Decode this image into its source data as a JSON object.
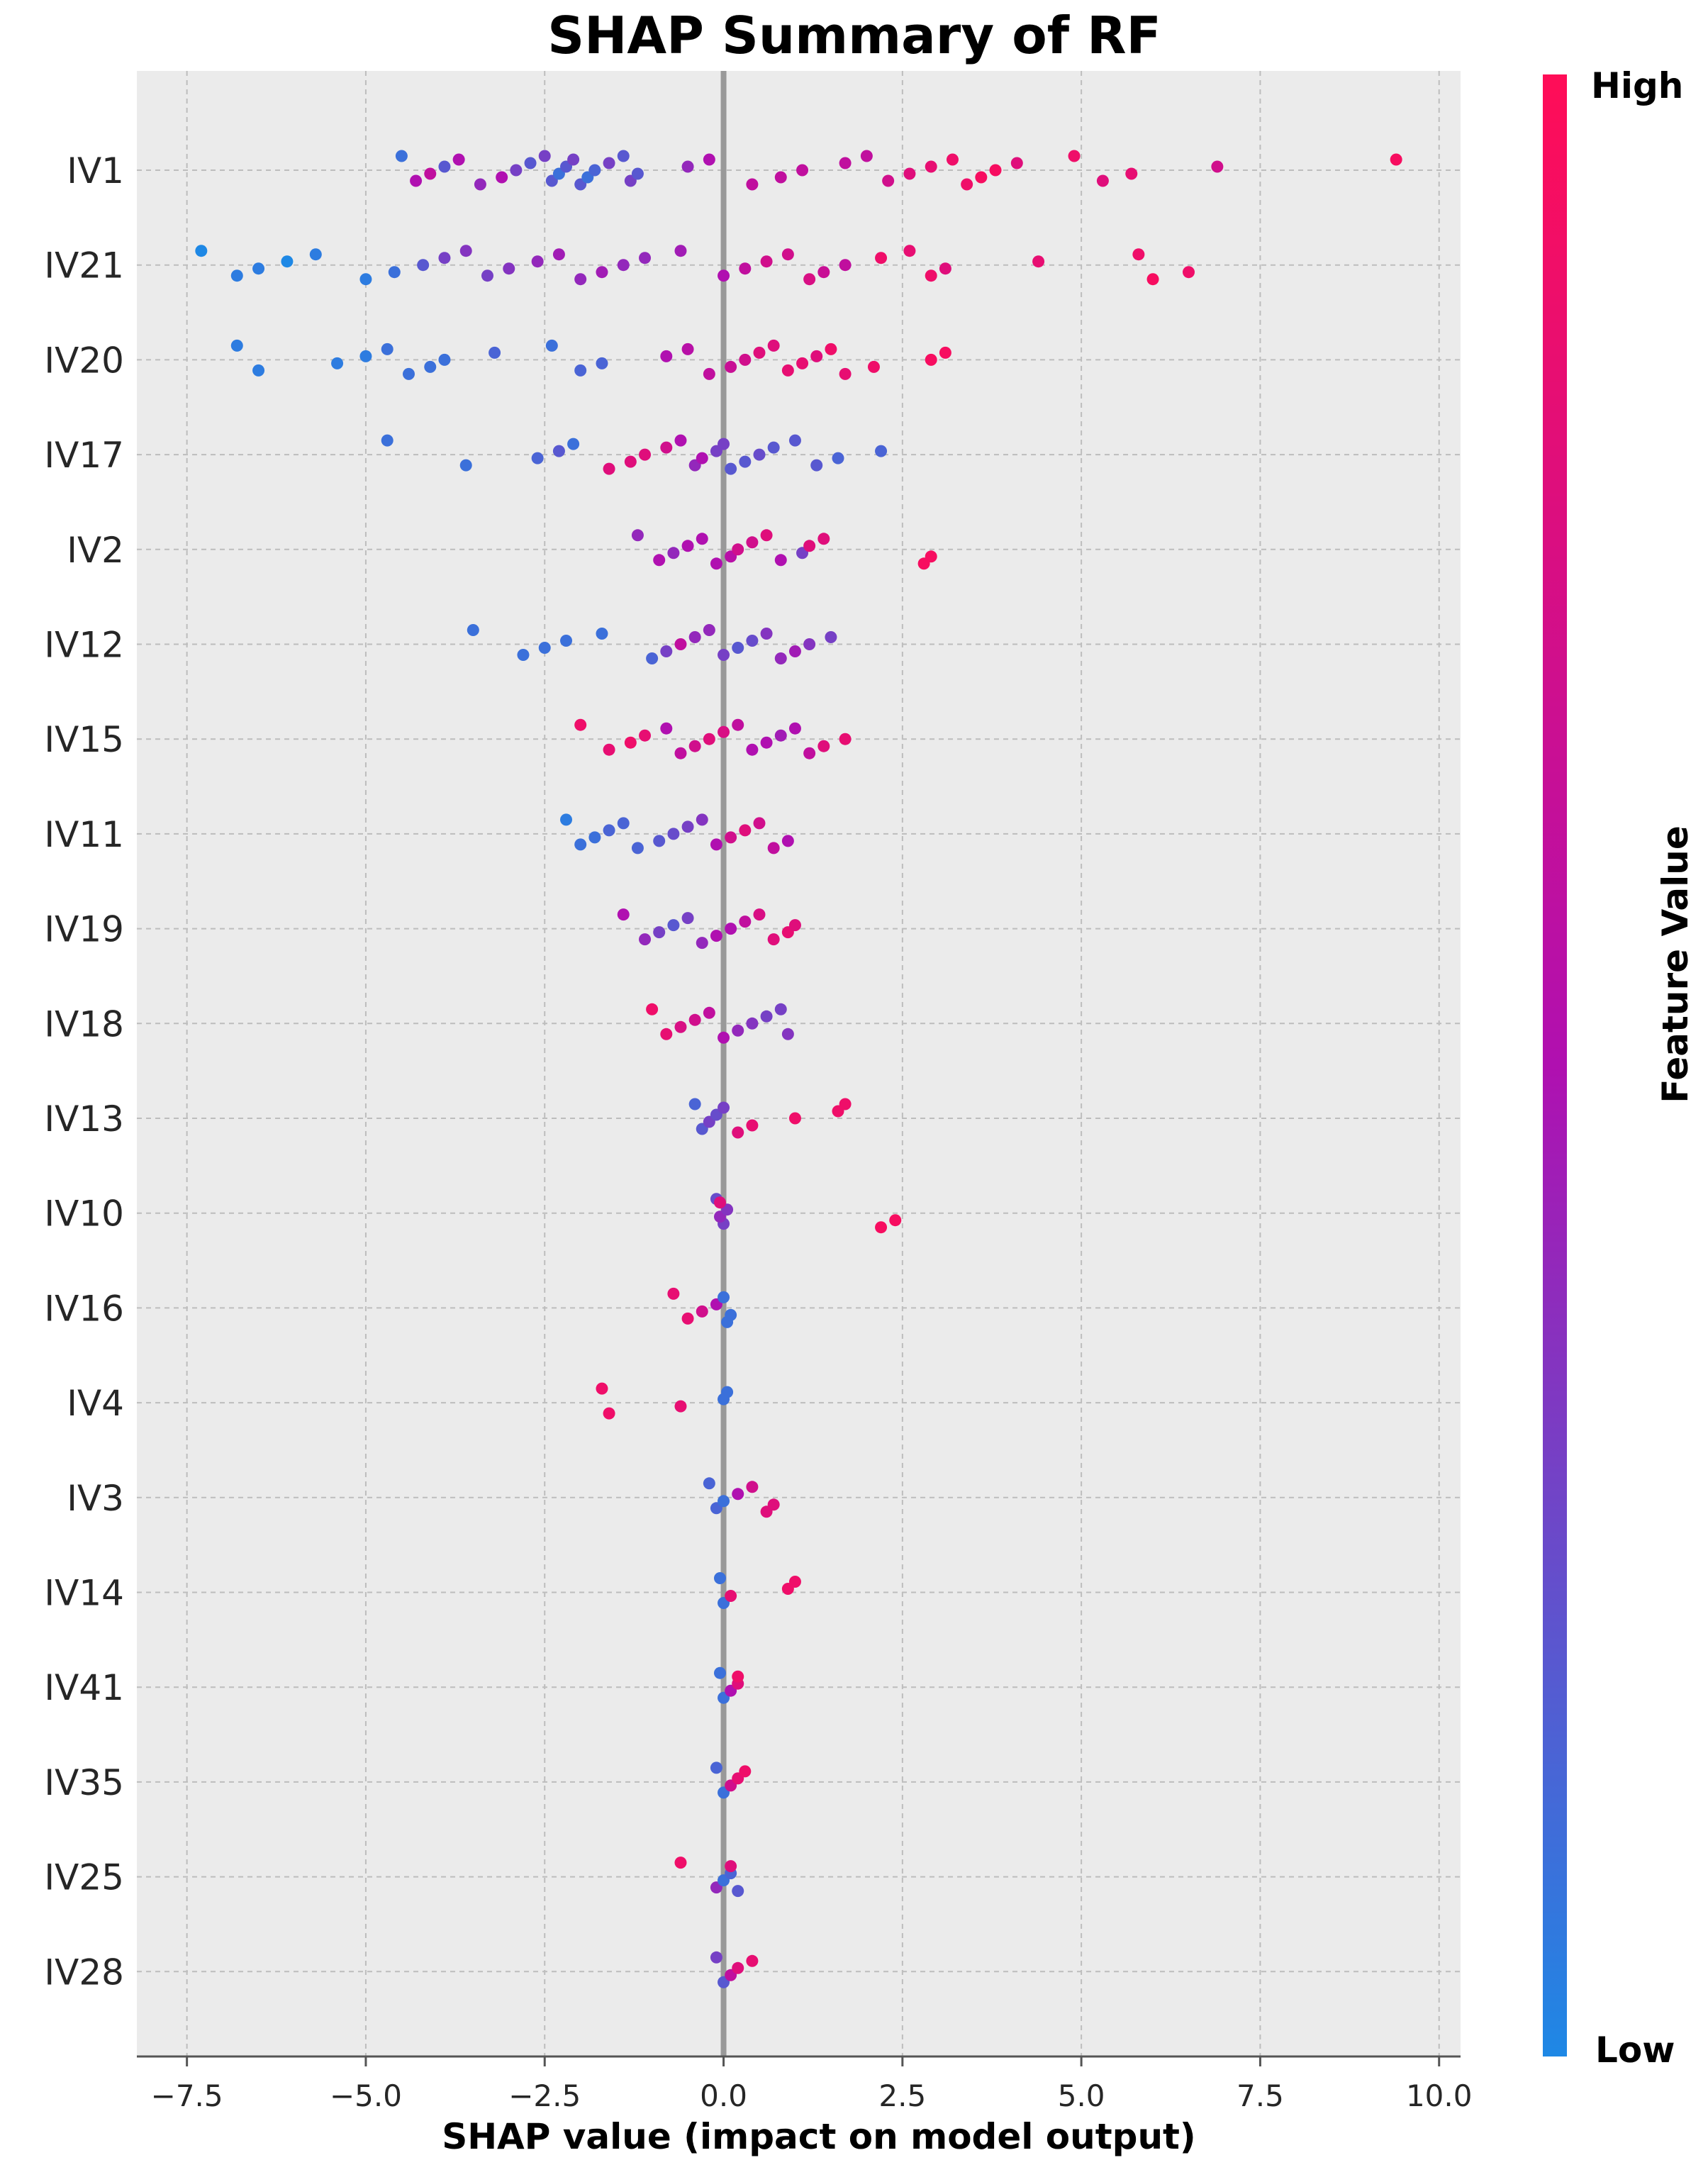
{
  "chart_data": {
    "type": "scatter",
    "subtype": "shap-beeswarm",
    "title": "SHAP Summary of RF",
    "xlabel": "SHAP value (impact on model output)",
    "xlim": [
      -8.2,
      10.3
    ],
    "xticks": [
      -7.5,
      -5.0,
      -2.5,
      0.0,
      2.5,
      5.0,
      7.5,
      10.0
    ],
    "xtick_labels": [
      "−7.5",
      "−5.0",
      "−2.5",
      "0.0",
      "2.5",
      "5.0",
      "7.5",
      "10.0"
    ],
    "grid": true,
    "colorbar": {
      "label": "Feature Value",
      "high_label": "High",
      "low_label": "Low",
      "low_color": "#1E88E5",
      "mid_color": "#B010B0",
      "high_color": "#FF0D57"
    },
    "features": [
      {
        "name": "IV1",
        "points": [
          [
            -4.5,
            0.1
          ],
          [
            -4.3,
            0.5
          ],
          [
            -4.1,
            0.6
          ],
          [
            -3.9,
            0.2
          ],
          [
            -3.7,
            0.5
          ],
          [
            -3.4,
            0.4
          ],
          [
            -3.1,
            0.5
          ],
          [
            -2.9,
            0.3
          ],
          [
            -2.7,
            0.2
          ],
          [
            -2.5,
            0.3
          ],
          [
            -2.4,
            0.2
          ],
          [
            -2.3,
            0.1
          ],
          [
            -2.2,
            0.2
          ],
          [
            -2.1,
            0.3
          ],
          [
            -2.0,
            0.2
          ],
          [
            -1.9,
            0.1
          ],
          [
            -1.8,
            0.15
          ],
          [
            -1.6,
            0.3
          ],
          [
            -1.4,
            0.2
          ],
          [
            -1.3,
            0.3
          ],
          [
            -1.2,
            0.2
          ],
          [
            -0.5,
            0.4
          ],
          [
            -0.2,
            0.5
          ],
          [
            0.4,
            0.6
          ],
          [
            0.8,
            0.6
          ],
          [
            1.1,
            0.6
          ],
          [
            1.7,
            0.6
          ],
          [
            2.0,
            0.6
          ],
          [
            2.3,
            0.7
          ],
          [
            2.6,
            0.8
          ],
          [
            2.9,
            0.85
          ],
          [
            3.2,
            0.9
          ],
          [
            3.4,
            0.9
          ],
          [
            3.6,
            0.95
          ],
          [
            3.8,
            0.95
          ],
          [
            4.1,
            0.8
          ],
          [
            4.9,
            0.9
          ],
          [
            5.3,
            0.8
          ],
          [
            5.7,
            0.85
          ],
          [
            6.9,
            0.7
          ],
          [
            9.4,
            0.95
          ]
        ]
      },
      {
        "name": "IV21",
        "points": [
          [
            -7.3,
            0.0
          ],
          [
            -6.8,
            0.05
          ],
          [
            -6.5,
            0.05
          ],
          [
            -6.1,
            0.0
          ],
          [
            -5.7,
            0.05
          ],
          [
            -5.0,
            0.05
          ],
          [
            -4.6,
            0.1
          ],
          [
            -4.2,
            0.2
          ],
          [
            -3.9,
            0.3
          ],
          [
            -3.6,
            0.35
          ],
          [
            -3.3,
            0.3
          ],
          [
            -3.0,
            0.35
          ],
          [
            -2.6,
            0.4
          ],
          [
            -2.3,
            0.45
          ],
          [
            -2.0,
            0.4
          ],
          [
            -1.7,
            0.45
          ],
          [
            -1.4,
            0.4
          ],
          [
            -1.1,
            0.4
          ],
          [
            -0.6,
            0.45
          ],
          [
            0.0,
            0.5
          ],
          [
            0.3,
            0.6
          ],
          [
            0.6,
            0.7
          ],
          [
            0.9,
            0.7
          ],
          [
            1.2,
            0.75
          ],
          [
            1.4,
            0.65
          ],
          [
            1.7,
            0.6
          ],
          [
            2.2,
            0.9
          ],
          [
            2.6,
            0.85
          ],
          [
            2.9,
            0.9
          ],
          [
            3.1,
            0.8
          ],
          [
            4.4,
            0.85
          ],
          [
            5.8,
            0.9
          ],
          [
            6.0,
            0.95
          ],
          [
            6.5,
            0.9
          ]
        ]
      },
      {
        "name": "IV20",
        "points": [
          [
            -6.8,
            0.05
          ],
          [
            -6.5,
            0.05
          ],
          [
            -5.4,
            0.05
          ],
          [
            -5.0,
            0.05
          ],
          [
            -4.7,
            0.1
          ],
          [
            -4.4,
            0.1
          ],
          [
            -4.1,
            0.1
          ],
          [
            -3.9,
            0.1
          ],
          [
            -3.2,
            0.15
          ],
          [
            -2.4,
            0.1
          ],
          [
            -2.0,
            0.15
          ],
          [
            -1.7,
            0.15
          ],
          [
            -0.8,
            0.5
          ],
          [
            -0.5,
            0.55
          ],
          [
            -0.2,
            0.6
          ],
          [
            0.1,
            0.65
          ],
          [
            0.3,
            0.7
          ],
          [
            0.5,
            0.8
          ],
          [
            0.7,
            0.8
          ],
          [
            0.9,
            0.85
          ],
          [
            1.1,
            0.85
          ],
          [
            1.3,
            0.8
          ],
          [
            1.5,
            0.9
          ],
          [
            1.7,
            0.85
          ],
          [
            2.1,
            0.9
          ],
          [
            2.9,
            0.95
          ],
          [
            3.1,
            0.95
          ]
        ]
      },
      {
        "name": "IV17",
        "points": [
          [
            -4.7,
            0.1
          ],
          [
            -3.6,
            0.1
          ],
          [
            -2.6,
            0.15
          ],
          [
            -2.3,
            0.2
          ],
          [
            -2.1,
            0.1
          ],
          [
            -1.6,
            0.8
          ],
          [
            -1.3,
            0.8
          ],
          [
            -1.1,
            0.8
          ],
          [
            -0.8,
            0.7
          ],
          [
            -0.6,
            0.5
          ],
          [
            -0.4,
            0.4
          ],
          [
            -0.3,
            0.5
          ],
          [
            -0.1,
            0.3
          ],
          [
            0.0,
            0.3
          ],
          [
            0.1,
            0.2
          ],
          [
            0.3,
            0.2
          ],
          [
            0.5,
            0.25
          ],
          [
            0.7,
            0.2
          ],
          [
            1.0,
            0.2
          ],
          [
            1.3,
            0.2
          ],
          [
            1.6,
            0.15
          ],
          [
            2.2,
            0.15
          ]
        ]
      },
      {
        "name": "IV2",
        "points": [
          [
            -1.2,
            0.4
          ],
          [
            -0.9,
            0.5
          ],
          [
            -0.7,
            0.4
          ],
          [
            -0.5,
            0.5
          ],
          [
            -0.3,
            0.5
          ],
          [
            -0.1,
            0.5
          ],
          [
            0.1,
            0.55
          ],
          [
            0.2,
            0.7
          ],
          [
            0.4,
            0.7
          ],
          [
            0.6,
            0.8
          ],
          [
            0.8,
            0.5
          ],
          [
            1.1,
            0.3
          ],
          [
            1.2,
            0.8
          ],
          [
            1.4,
            0.8
          ],
          [
            2.8,
            0.95
          ],
          [
            2.9,
            0.95
          ]
        ]
      },
      {
        "name": "IV12",
        "points": [
          [
            -3.5,
            0.1
          ],
          [
            -2.8,
            0.1
          ],
          [
            -2.5,
            0.1
          ],
          [
            -2.2,
            0.1
          ],
          [
            -1.7,
            0.1
          ],
          [
            -1.0,
            0.15
          ],
          [
            -0.8,
            0.3
          ],
          [
            -0.6,
            0.6
          ],
          [
            -0.4,
            0.4
          ],
          [
            -0.2,
            0.4
          ],
          [
            0.0,
            0.3
          ],
          [
            0.2,
            0.2
          ],
          [
            0.4,
            0.25
          ],
          [
            0.6,
            0.35
          ],
          [
            0.8,
            0.4
          ],
          [
            1.0,
            0.45
          ],
          [
            1.2,
            0.35
          ],
          [
            1.5,
            0.3
          ]
        ]
      },
      {
        "name": "IV15",
        "points": [
          [
            -2.0,
            0.9
          ],
          [
            -1.6,
            0.85
          ],
          [
            -1.3,
            0.9
          ],
          [
            -1.1,
            0.85
          ],
          [
            -0.8,
            0.5
          ],
          [
            -0.6,
            0.6
          ],
          [
            -0.4,
            0.7
          ],
          [
            -0.2,
            0.8
          ],
          [
            0.0,
            0.75
          ],
          [
            0.2,
            0.6
          ],
          [
            0.4,
            0.5
          ],
          [
            0.6,
            0.5
          ],
          [
            0.8,
            0.45
          ],
          [
            1.0,
            0.5
          ],
          [
            1.2,
            0.6
          ],
          [
            1.4,
            0.8
          ],
          [
            1.7,
            0.85
          ]
        ]
      },
      {
        "name": "IV11",
        "points": [
          [
            -2.2,
            0.05
          ],
          [
            -2.0,
            0.1
          ],
          [
            -1.8,
            0.1
          ],
          [
            -1.6,
            0.15
          ],
          [
            -1.4,
            0.15
          ],
          [
            -1.2,
            0.15
          ],
          [
            -0.9,
            0.2
          ],
          [
            -0.7,
            0.25
          ],
          [
            -0.5,
            0.3
          ],
          [
            -0.3,
            0.35
          ],
          [
            -0.1,
            0.5
          ],
          [
            0.1,
            0.7
          ],
          [
            0.3,
            0.8
          ],
          [
            0.5,
            0.7
          ],
          [
            0.7,
            0.6
          ],
          [
            0.9,
            0.5
          ]
        ]
      },
      {
        "name": "IV19",
        "points": [
          [
            -1.4,
            0.5
          ],
          [
            -1.1,
            0.4
          ],
          [
            -0.9,
            0.3
          ],
          [
            -0.7,
            0.2
          ],
          [
            -0.5,
            0.3
          ],
          [
            -0.3,
            0.4
          ],
          [
            -0.1,
            0.5
          ],
          [
            0.1,
            0.5
          ],
          [
            0.3,
            0.6
          ],
          [
            0.5,
            0.75
          ],
          [
            0.7,
            0.8
          ],
          [
            0.9,
            0.85
          ],
          [
            1.0,
            0.8
          ]
        ]
      },
      {
        "name": "IV18",
        "points": [
          [
            -1.0,
            0.9
          ],
          [
            -0.8,
            0.85
          ],
          [
            -0.6,
            0.75
          ],
          [
            -0.4,
            0.7
          ],
          [
            -0.2,
            0.6
          ],
          [
            0.0,
            0.5
          ],
          [
            0.2,
            0.4
          ],
          [
            0.4,
            0.35
          ],
          [
            0.6,
            0.3
          ],
          [
            0.8,
            0.3
          ],
          [
            0.9,
            0.35
          ]
        ]
      },
      {
        "name": "IV13",
        "points": [
          [
            -0.4,
            0.15
          ],
          [
            -0.3,
            0.2
          ],
          [
            -0.2,
            0.3
          ],
          [
            -0.1,
            0.25
          ],
          [
            0.0,
            0.3
          ],
          [
            0.2,
            0.8
          ],
          [
            0.4,
            0.85
          ],
          [
            1.0,
            0.9
          ],
          [
            1.6,
            0.9
          ],
          [
            1.7,
            0.9
          ]
        ]
      },
      {
        "name": "IV10",
        "points": [
          [
            -0.1,
            0.25
          ],
          [
            0.0,
            0.3
          ],
          [
            -0.05,
            0.4
          ],
          [
            0.05,
            0.35
          ],
          [
            -0.05,
            0.8
          ],
          [
            2.2,
            0.95
          ],
          [
            2.4,
            0.95
          ]
        ]
      },
      {
        "name": "IV16",
        "points": [
          [
            -0.7,
            0.85
          ],
          [
            -0.5,
            0.85
          ],
          [
            -0.3,
            0.7
          ],
          [
            -0.1,
            0.5
          ],
          [
            0.0,
            0.1
          ],
          [
            0.05,
            0.1
          ],
          [
            0.1,
            0.1
          ]
        ]
      },
      {
        "name": "IV4",
        "points": [
          [
            -1.7,
            0.9
          ],
          [
            -1.6,
            0.9
          ],
          [
            -0.6,
            0.85
          ],
          [
            0.0,
            0.1
          ],
          [
            0.05,
            0.1
          ]
        ]
      },
      {
        "name": "IV3",
        "points": [
          [
            -0.2,
            0.15
          ],
          [
            -0.1,
            0.15
          ],
          [
            0.0,
            0.1
          ],
          [
            0.2,
            0.5
          ],
          [
            0.4,
            0.7
          ],
          [
            0.6,
            0.8
          ],
          [
            0.7,
            0.8
          ]
        ]
      },
      {
        "name": "IV14",
        "points": [
          [
            -0.05,
            0.1
          ],
          [
            0.0,
            0.1
          ],
          [
            0.1,
            0.85
          ],
          [
            0.9,
            0.9
          ],
          [
            1.0,
            0.9
          ]
        ]
      },
      {
        "name": "IV41",
        "points": [
          [
            -0.05,
            0.1
          ],
          [
            0.0,
            0.1
          ],
          [
            0.1,
            0.5
          ],
          [
            0.2,
            0.8
          ],
          [
            0.2,
            0.9
          ]
        ]
      },
      {
        "name": "IV35",
        "points": [
          [
            -0.1,
            0.15
          ],
          [
            0.0,
            0.1
          ],
          [
            0.1,
            0.7
          ],
          [
            0.2,
            0.85
          ],
          [
            0.3,
            0.9
          ]
        ]
      },
      {
        "name": "IV25",
        "points": [
          [
            -0.6,
            0.9
          ],
          [
            -0.1,
            0.4
          ],
          [
            0.0,
            0.1
          ],
          [
            0.1,
            0.15
          ],
          [
            0.1,
            0.8
          ],
          [
            0.2,
            0.2
          ]
        ]
      },
      {
        "name": "IV28",
        "points": [
          [
            -0.1,
            0.3
          ],
          [
            0.0,
            0.2
          ],
          [
            0.1,
            0.6
          ],
          [
            0.2,
            0.8
          ],
          [
            0.4,
            0.85
          ]
        ]
      }
    ]
  }
}
